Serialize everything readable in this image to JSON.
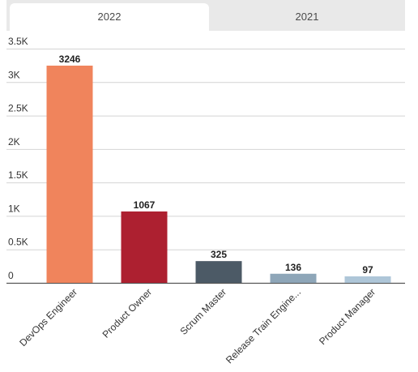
{
  "tabs": [
    {
      "label": "2022",
      "active": true
    },
    {
      "label": "2021",
      "active": false
    }
  ],
  "chart_data": {
    "type": "bar",
    "categories": [
      "DevOps Engineer",
      "Product Owner",
      "Scrum Master",
      "Release Train Engine...",
      "Product Manager"
    ],
    "values": [
      3246,
      1067,
      325,
      136,
      97
    ],
    "colors": [
      "#f0845c",
      "#ad2030",
      "#4c5a66",
      "#8ea6b8",
      "#aec6d8"
    ],
    "yticks": [
      {
        "value": 0,
        "label": "0"
      },
      {
        "value": 500,
        "label": "0.5K"
      },
      {
        "value": 1000,
        "label": "1K"
      },
      {
        "value": 1500,
        "label": "1.5K"
      },
      {
        "value": 2000,
        "label": "2K"
      },
      {
        "value": 2500,
        "label": "2.5K"
      },
      {
        "value": 3000,
        "label": "3K"
      },
      {
        "value": 3500,
        "label": "3.5K"
      }
    ],
    "ylim": [
      0,
      3500
    ],
    "grid": true,
    "xlabel": "",
    "ylabel": ""
  }
}
